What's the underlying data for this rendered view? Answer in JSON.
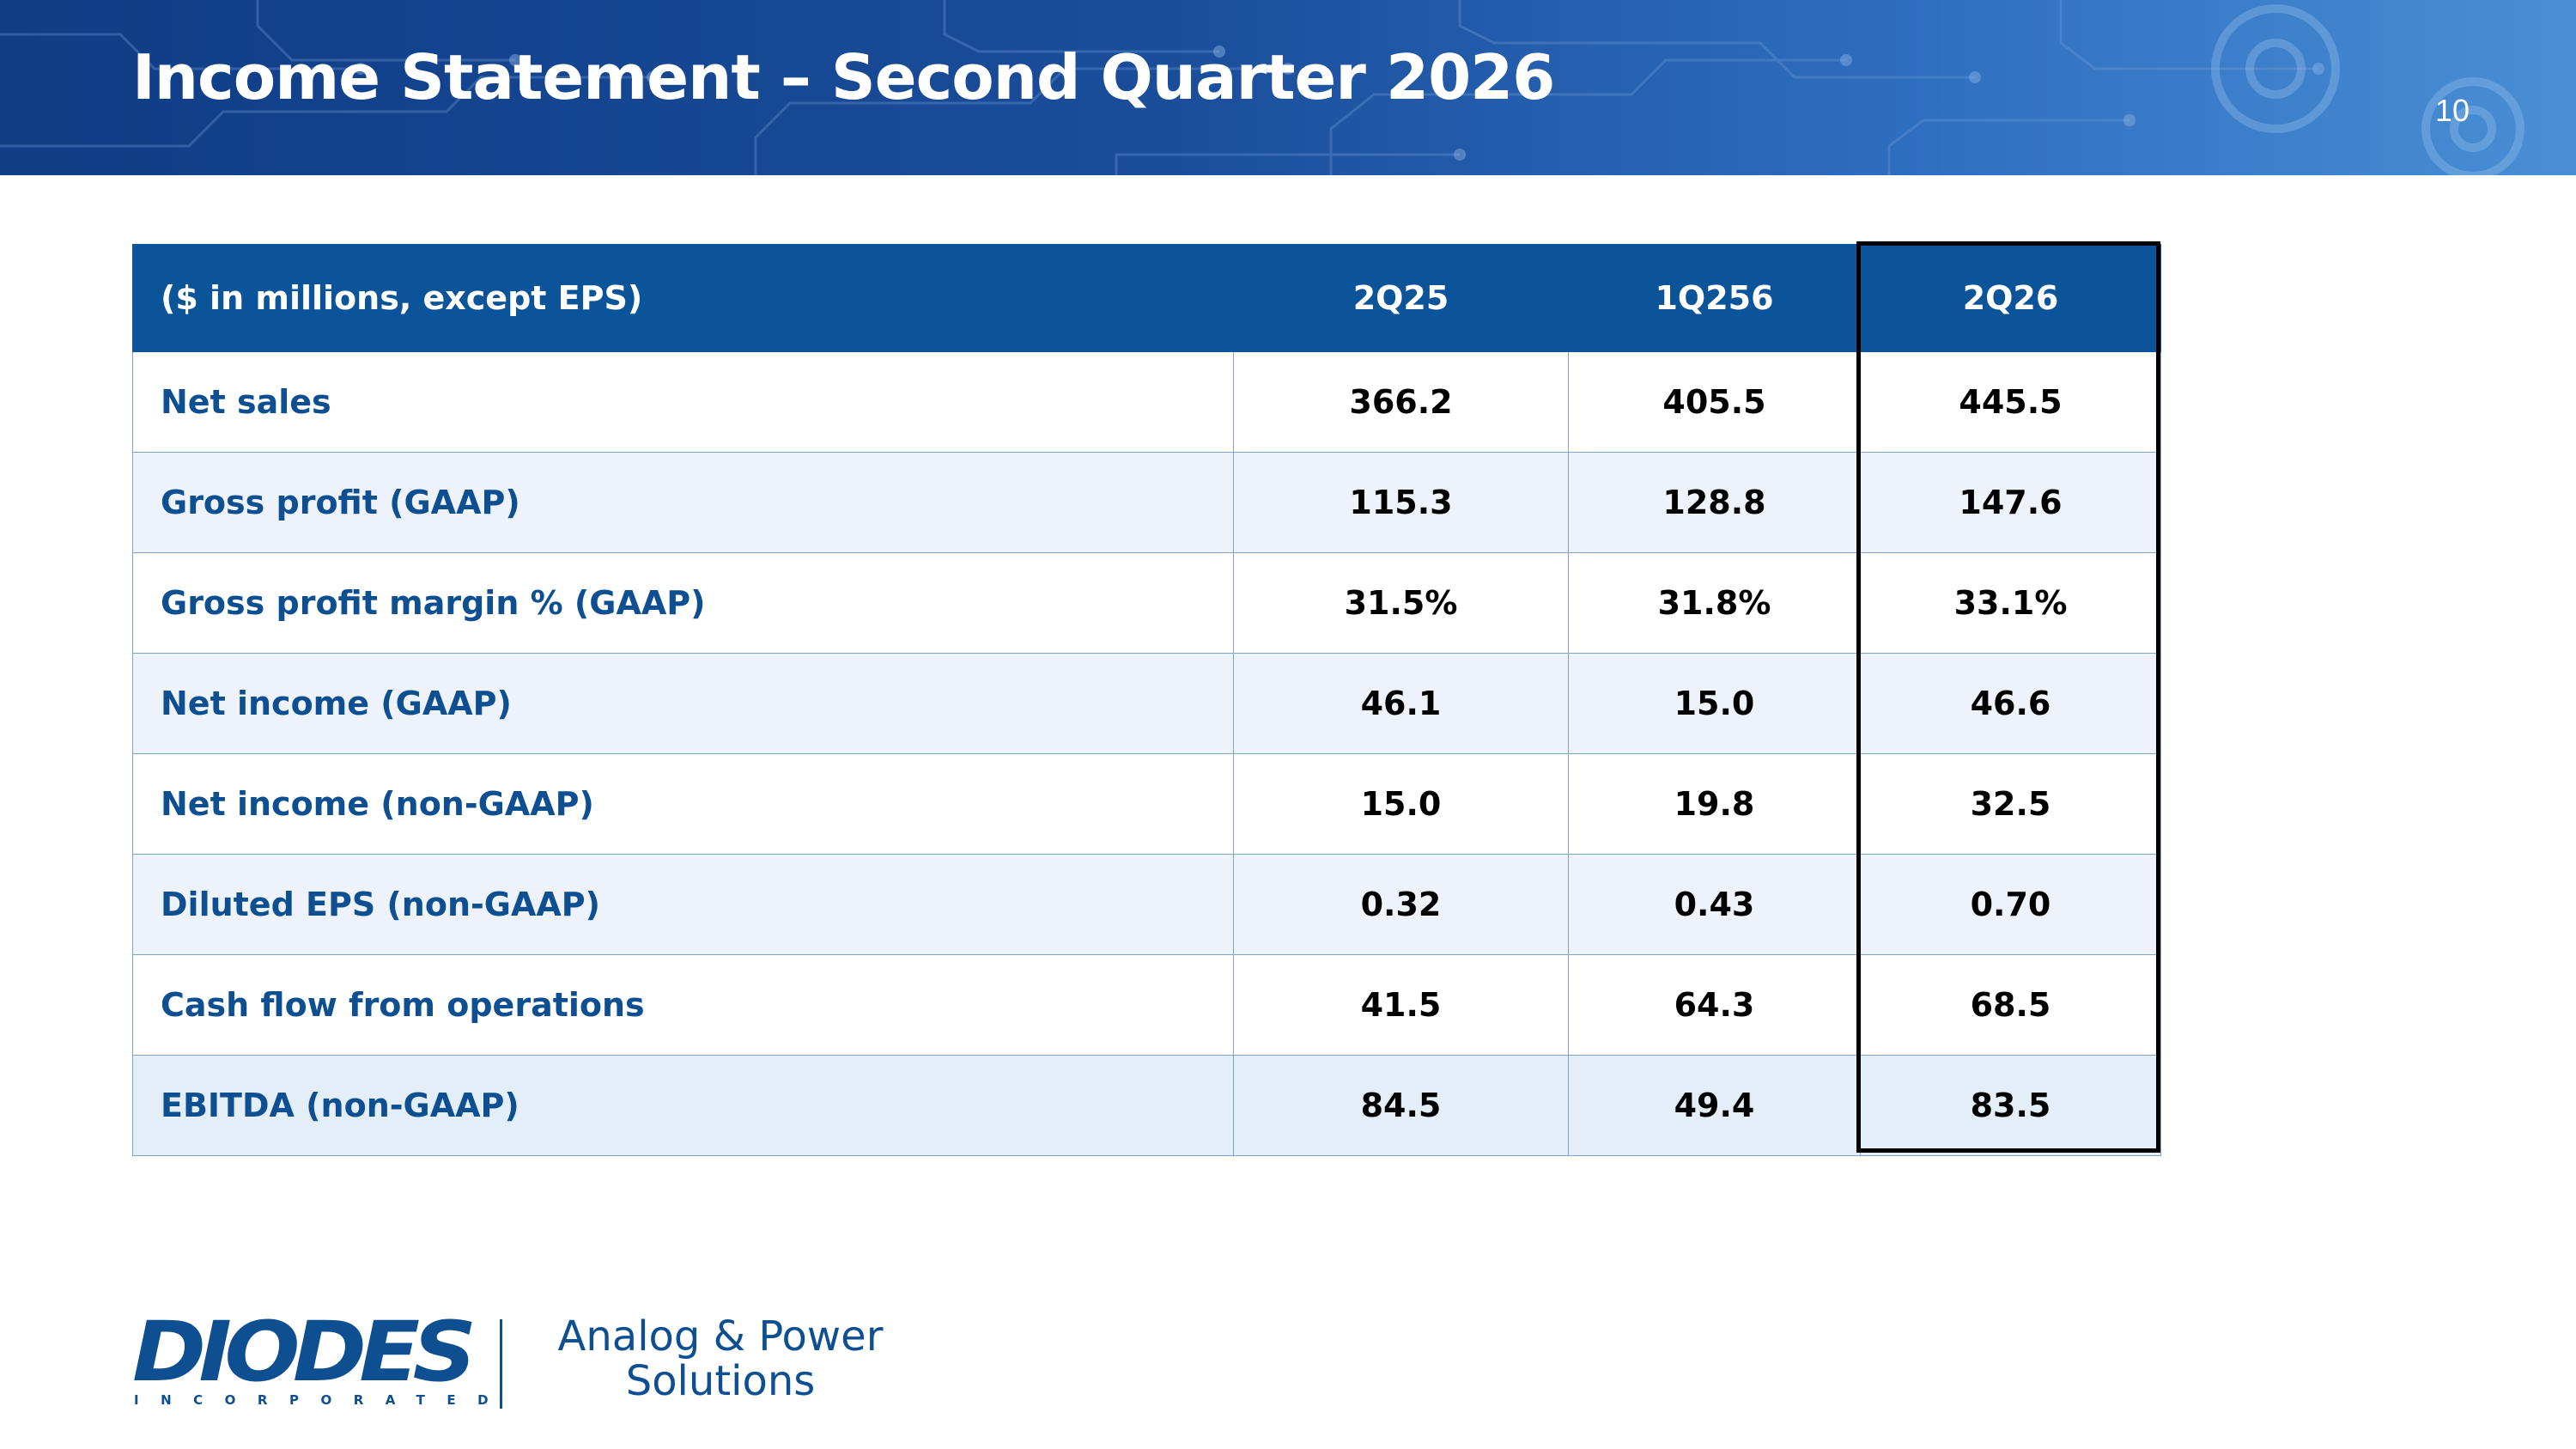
{
  "slide": {
    "title": "Income Statement – Second Quarter 2026",
    "page_number": "10"
  },
  "table": {
    "header": {
      "label": "($ in millions, except EPS)",
      "columns": [
        "2Q25",
        "1Q256",
        "2Q26"
      ]
    },
    "rows": [
      {
        "label": "Net sales",
        "values": [
          "366.2",
          "405.5",
          "445.5"
        ]
      },
      {
        "label": "Gross profit (GAAP)",
        "values": [
          "115.3",
          "128.8",
          "147.6"
        ]
      },
      {
        "label": "Gross profit margin % (GAAP)",
        "values": [
          "31.5%",
          "31.8%",
          "33.1%"
        ]
      },
      {
        "label": "Net income (GAAP)",
        "values": [
          "46.1",
          "15.0",
          "46.6"
        ]
      },
      {
        "label": "Net income (non-GAAP)",
        "values": [
          "15.0",
          "19.8",
          "32.5"
        ]
      },
      {
        "label": "Diluted EPS (non-GAAP)",
        "values": [
          "0.32",
          "0.43",
          "0.70"
        ]
      },
      {
        "label": "Cash flow from operations",
        "values": [
          "41.5",
          "64.3",
          "68.5"
        ]
      },
      {
        "label": "EBITDA (non-GAAP)",
        "values": [
          "84.5",
          "49.4",
          "83.5"
        ]
      }
    ]
  },
  "logo": {
    "wordmark": "DIODES",
    "subtext": "INCORPORATED",
    "tagline_line1": "Analog & Power",
    "tagline_line2": "Solutions"
  },
  "colors": {
    "header_blue": "#0b5499",
    "label_blue": "#0d4f90",
    "alt_row": "#eef3fb",
    "highlight_border": "#000000"
  },
  "icons": [
    "circuit-pattern-background",
    "gear-graphic"
  ]
}
